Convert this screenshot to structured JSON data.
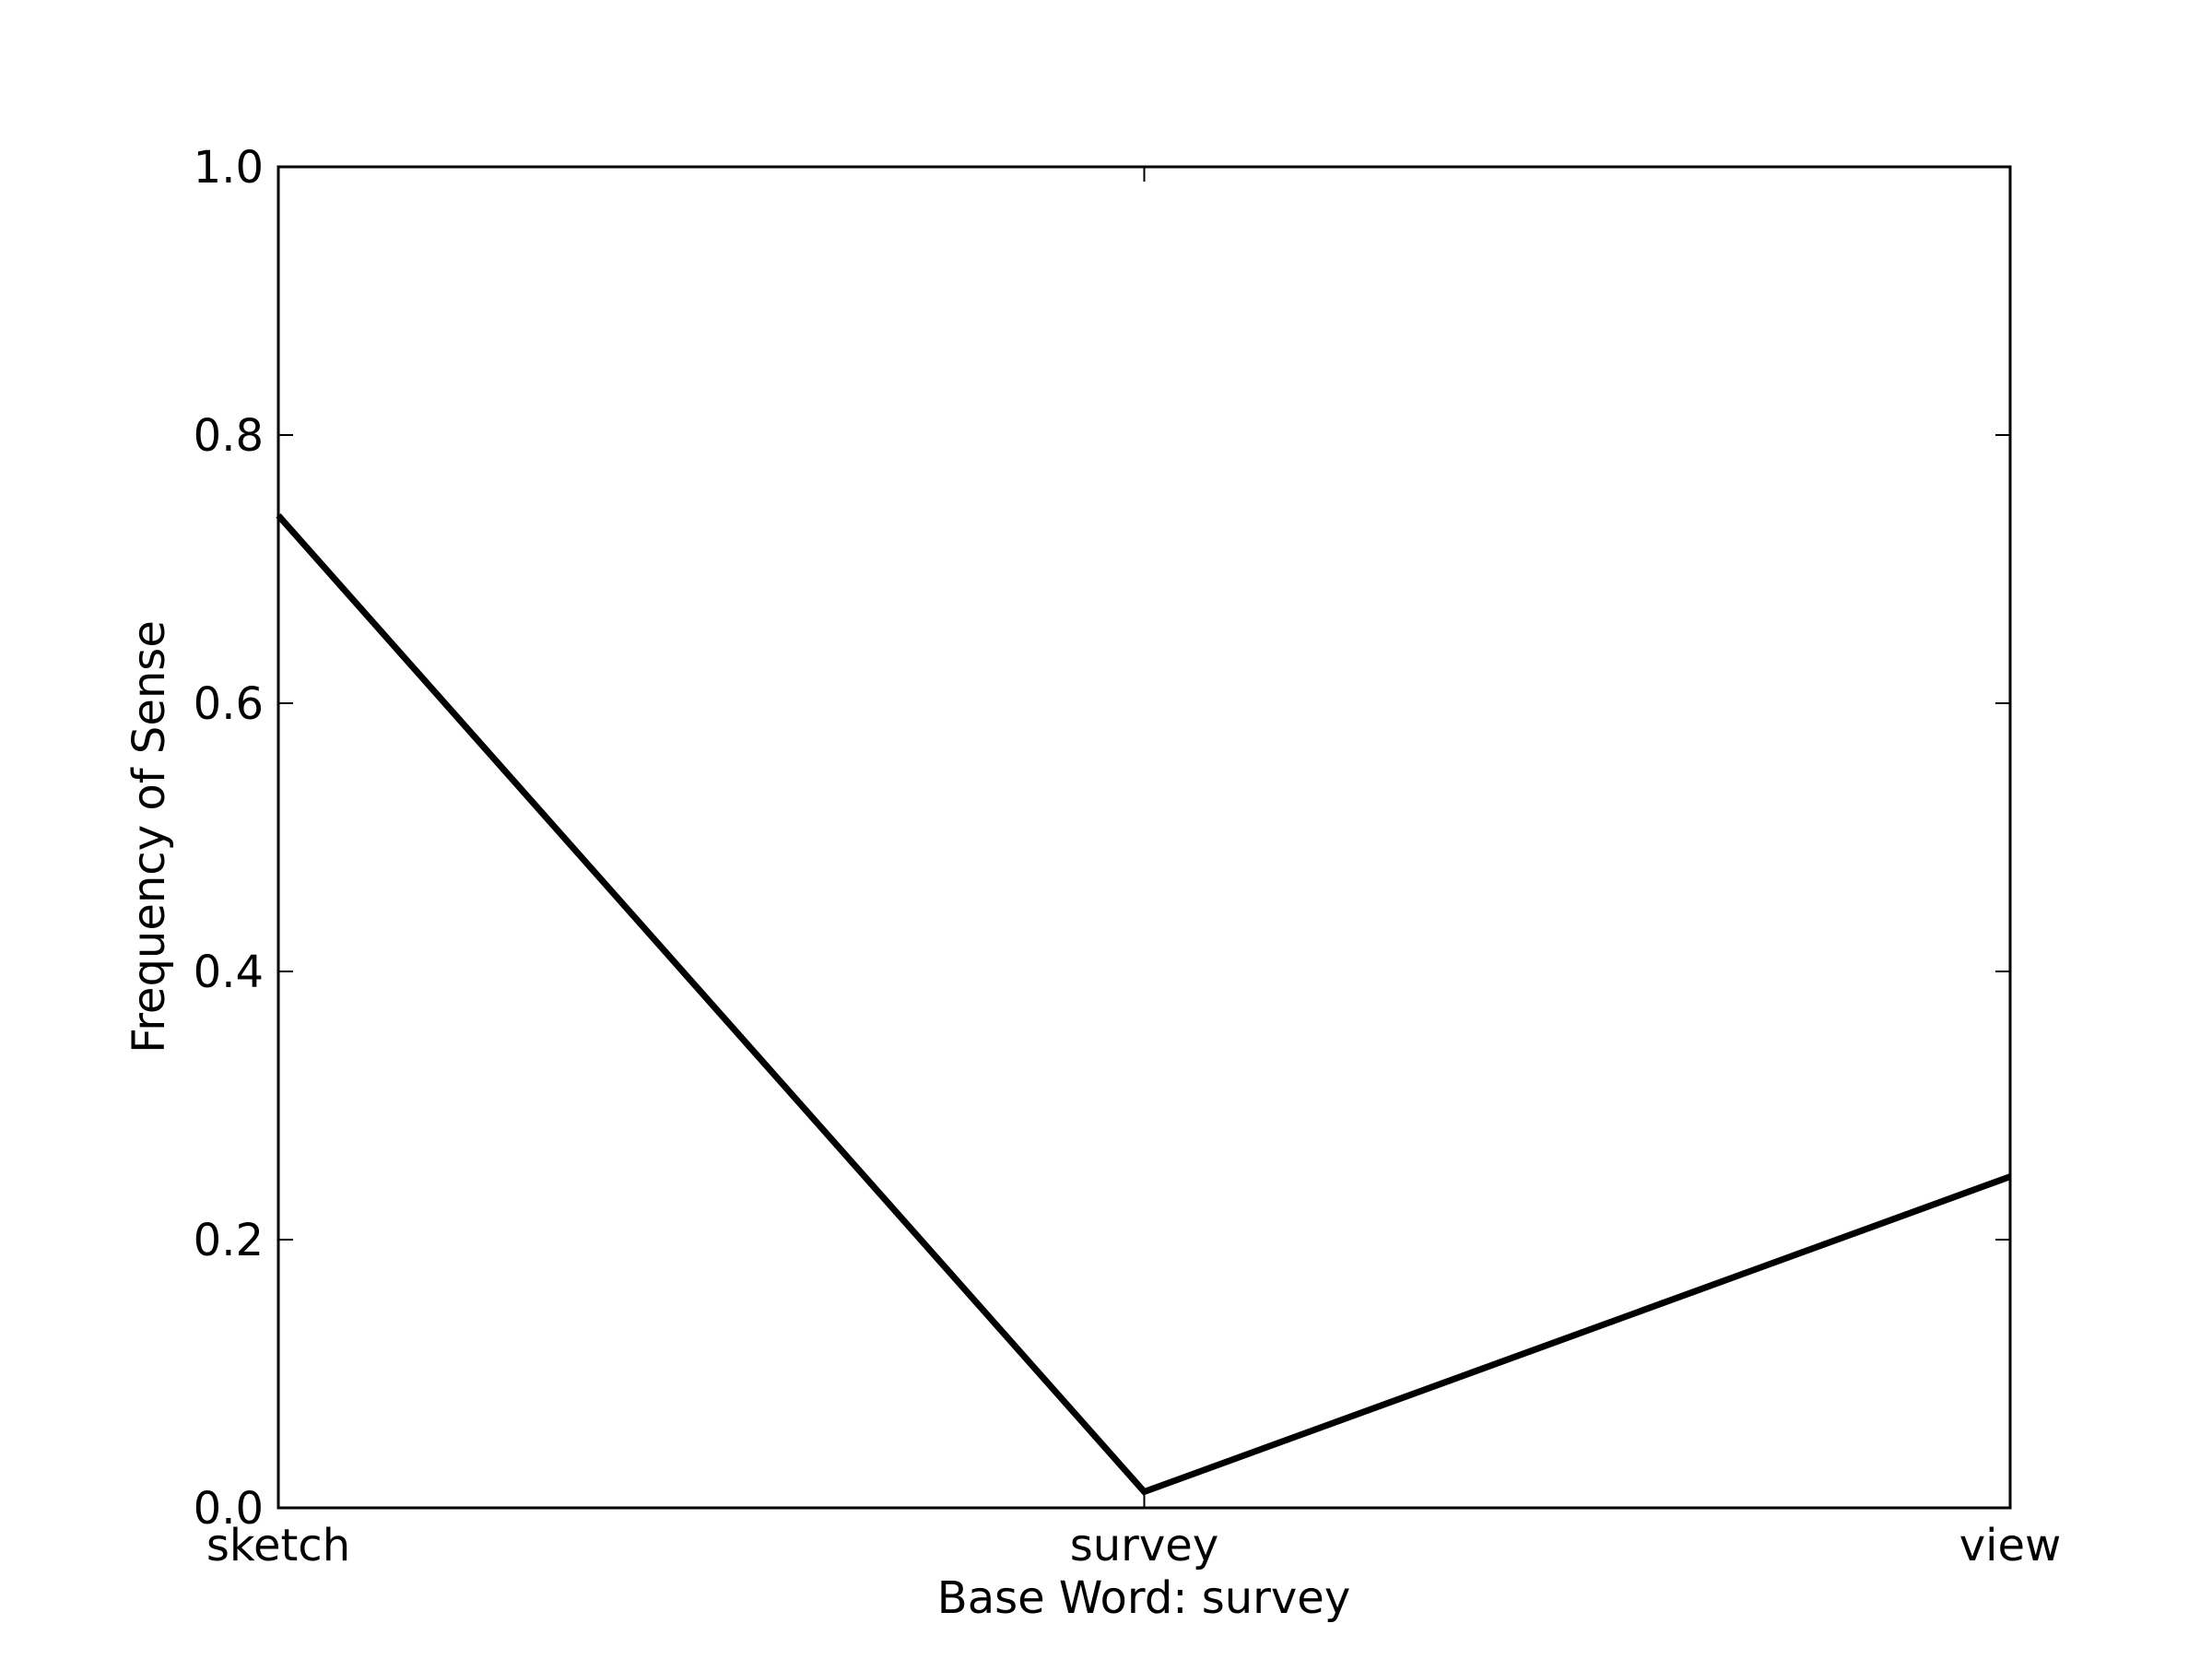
{
  "chart_data": {
    "type": "line",
    "categories": [
      "sketch",
      "survey",
      "view"
    ],
    "values": [
      0.74,
      0.012,
      0.247
    ],
    "title": "",
    "xlabel": "Base Word: survey",
    "ylabel": "Frequency of Sense",
    "ylim": [
      0.0,
      1.0
    ],
    "yticks": [
      "0.0",
      "0.2",
      "0.4",
      "0.6",
      "0.8",
      "1.0"
    ],
    "grid": false,
    "line_color": "#000000"
  }
}
